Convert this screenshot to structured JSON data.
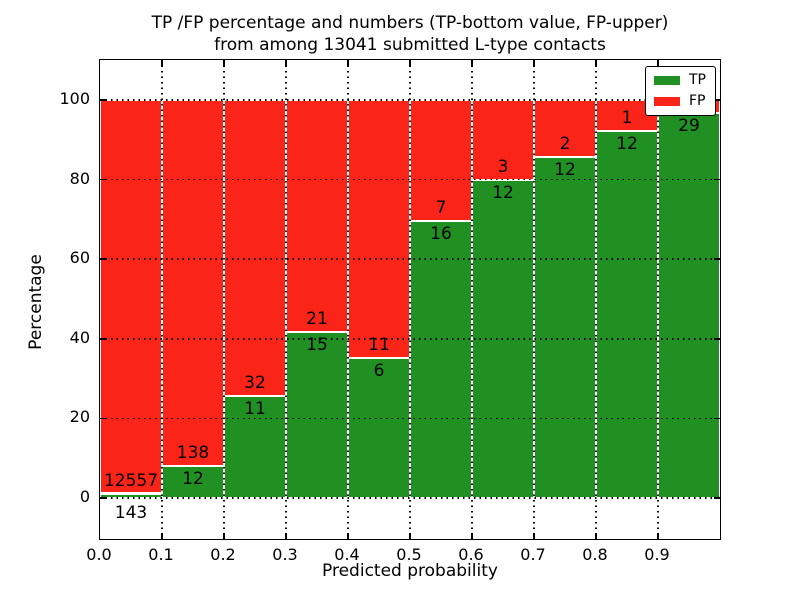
{
  "title": {
    "line1": "TP /FP percentage and numbers (TP-bottom value, FP-upper)",
    "line2": "from among 13041 submitted L-type contacts"
  },
  "axes": {
    "ylabel": "Percentage",
    "xlabel": "Predicted probability",
    "ytick_labels": [
      "0",
      "20",
      "40",
      "60",
      "80",
      "100"
    ],
    "ytick_values": [
      0,
      20,
      40,
      60,
      80,
      100
    ],
    "xtick_labels": [
      "0.0",
      "0.1",
      "0.2",
      "0.3",
      "0.4",
      "0.5",
      "0.6",
      "0.7",
      "0.8",
      "0.9"
    ],
    "grid": "dotted"
  },
  "legend": {
    "position": "upper right",
    "items": [
      {
        "label": "TP",
        "color": "#1f9021"
      },
      {
        "label": "FP",
        "color": "#fb2418"
      }
    ]
  },
  "colors": {
    "tp": "#1f9021",
    "fp": "#fb2418",
    "bar_edge": "#ffffff",
    "grid": "#000000",
    "text": "#000000",
    "background": "#ffffff"
  },
  "chart_data": {
    "type": "bar",
    "stacked": true,
    "normalized_to": 100,
    "title": "TP /FP percentage and numbers (TP-bottom value, FP-upper) from among 13041 submitted L-type contacts",
    "xlabel": "Predicted probability",
    "ylabel": "Percentage",
    "total_contacts": 13041,
    "bin_width": 0.1,
    "categories": [
      "0.0-0.1",
      "0.1-0.2",
      "0.2-0.3",
      "0.3-0.4",
      "0.4-0.5",
      "0.5-0.6",
      "0.6-0.7",
      "0.7-0.8",
      "0.8-0.9",
      "0.9-1.0"
    ],
    "bin_starts": [
      0.0,
      0.1,
      0.2,
      0.3,
      0.4,
      0.5,
      0.6,
      0.7,
      0.8,
      0.9
    ],
    "series": [
      {
        "name": "TP",
        "counts_labels": [
          "143",
          "12",
          "11",
          "15",
          "6",
          "16",
          "12",
          "12",
          "12",
          "29"
        ],
        "percent": [
          1.13,
          8.0,
          25.58,
          41.67,
          35.29,
          69.57,
          80.0,
          85.71,
          92.31,
          96.67
        ]
      },
      {
        "name": "FP",
        "counts_labels": [
          "12557",
          "138",
          "32",
          "21",
          "11",
          "7",
          "3",
          "2",
          "1",
          ""
        ],
        "percent": [
          98.87,
          92.0,
          74.42,
          58.33,
          64.71,
          30.43,
          20.0,
          14.29,
          7.69,
          3.33
        ]
      }
    ],
    "label_convention": "TP count printed below TP/FP boundary, FP count printed above it; first bar TP count printed below the 0 axis line; last bar FP count hidden behind legend",
    "xlim": [
      0.0,
      1.0
    ],
    "yticks": [
      0,
      20,
      40,
      60,
      80,
      100
    ],
    "grid": true,
    "legend_position": "upper right"
  }
}
